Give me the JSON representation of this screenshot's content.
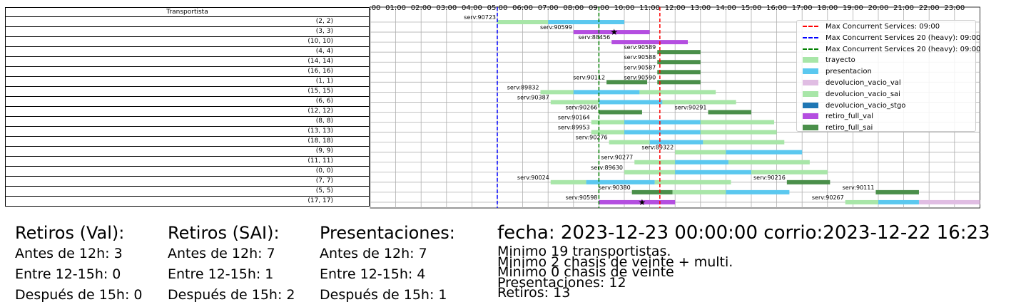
{
  "table": {
    "header": "Transportista",
    "rows": [
      "(2, 2)",
      "(3, 3)",
      "(10, 10)",
      "(4, 4)",
      "(14, 14)",
      "(16, 16)",
      "(1, 1)",
      "(15, 15)",
      "(6, 6)",
      "(12, 12)",
      "(8, 8)",
      "(13, 13)",
      "(18, 18)",
      "(9, 9)",
      "(11, 11)",
      "(0, 0)",
      "(7, 7)",
      "(5, 5)",
      "(17, 17)"
    ]
  },
  "chart_data": {
    "type": "gantt",
    "x_ticks": [
      "00:00",
      "01:00",
      "02:00",
      "03:00",
      "04:00",
      "05:00",
      "06:00",
      "07:00",
      "08:00",
      "09:00",
      "10:00",
      "11:00",
      "12:00",
      "13:00",
      "14:00",
      "15:00",
      "16:00",
      "17:00",
      "18:00",
      "19:00",
      "20:00",
      "21:00",
      "22:00",
      "23:00"
    ],
    "xlim": [
      0,
      24
    ],
    "grid": true,
    "legend_position": "top-right",
    "vlines": [
      {
        "label": "Max Concurrent Services: 09:00",
        "x": 11.4,
        "color": "#ff0000"
      },
      {
        "label": "Max Concurrent Services 20 (heavy): 09:00",
        "x": 5.0,
        "color": "#0000ff"
      },
      {
        "label": "Max Concurrent Services 20 (heavy): 09:00",
        "x": 9.0,
        "color": "#008000"
      }
    ],
    "categories": [
      {
        "label": "trayecto",
        "color": "#a8e6a8"
      },
      {
        "label": "presentacion",
        "color": "#5bc8ef"
      },
      {
        "label": "devolucion_vacio_val",
        "color": "#e0bde3"
      },
      {
        "label": "devolucion_vacio_sai",
        "color": "#a8e6a8"
      },
      {
        "label": "devolucion_vacio_stgo",
        "color": "#1f77b4"
      },
      {
        "label": "retiro_full_val",
        "color": "#b44ee0"
      },
      {
        "label": "retiro_full_sai",
        "color": "#4a8f4a"
      }
    ],
    "rows": [
      {
        "services": [
          {
            "label": "serv:90723",
            "label_x": 5.0,
            "segments": [
              [
                5.0,
                7.0,
                "trayecto"
              ],
              [
                7.0,
                10.0,
                "presentacion"
              ]
            ]
          }
        ]
      },
      {
        "services": [
          {
            "label": "serv:90599",
            "label_x": 8.0,
            "star": 9.6,
            "segments": [
              [
                8.0,
                11.0,
                "retiro_full_val"
              ]
            ]
          }
        ]
      },
      {
        "services": [
          {
            "label": "serv:88456",
            "label_x": 9.5,
            "segments": [
              [
                9.5,
                12.5,
                "retiro_full_val"
              ]
            ]
          }
        ]
      },
      {
        "services": [
          {
            "label": "serv:90589",
            "label_x": 11.3,
            "segments": [
              [
                11.3,
                13.0,
                "retiro_full_sai"
              ]
            ]
          }
        ]
      },
      {
        "services": [
          {
            "label": "serv:90588",
            "label_x": 11.3,
            "segments": [
              [
                11.3,
                13.0,
                "retiro_full_sai"
              ]
            ]
          }
        ]
      },
      {
        "services": [
          {
            "label": "serv:90587",
            "label_x": 11.3,
            "segments": [
              [
                11.3,
                13.0,
                "retiro_full_sai"
              ]
            ]
          }
        ]
      },
      {
        "services": [
          {
            "label": "serv:90112",
            "label_x": 9.3,
            "segments": [
              [
                9.3,
                10.9,
                "retiro_full_sai"
              ]
            ]
          },
          {
            "label": "serv:90590",
            "label_x": 11.3,
            "segments": [
              [
                11.3,
                13.0,
                "retiro_full_sai"
              ]
            ]
          }
        ]
      },
      {
        "services": [
          {
            "label": "serv:89832",
            "label_x": 6.7,
            "segments": [
              [
                6.7,
                8.0,
                "trayecto"
              ],
              [
                8.0,
                10.6,
                "presentacion"
              ],
              [
                10.6,
                13.6,
                "trayecto"
              ]
            ]
          }
        ]
      },
      {
        "services": [
          {
            "label": "serv:90387",
            "label_x": 7.1,
            "segments": [
              [
                7.1,
                9.0,
                "trayecto"
              ],
              [
                9.0,
                11.5,
                "presentacion"
              ],
              [
                11.5,
                14.4,
                "trayecto"
              ]
            ]
          }
        ]
      },
      {
        "services": [
          {
            "label": "serv:90266",
            "label_x": 9.0,
            "segments": [
              [
                9.0,
                10.7,
                "retiro_full_sai"
              ]
            ]
          },
          {
            "label": "serv:90291",
            "label_x": 13.3,
            "segments": [
              [
                13.3,
                15.0,
                "retiro_full_sai"
              ]
            ]
          }
        ]
      },
      {
        "services": [
          {
            "label": "serv:90164",
            "label_x": 8.7,
            "segments": [
              [
                8.7,
                10.0,
                "trayecto"
              ],
              [
                10.0,
                13.0,
                "presentacion"
              ],
              [
                13.0,
                15.9,
                "trayecto"
              ]
            ]
          }
        ]
      },
      {
        "services": [
          {
            "label": "serv:89953",
            "label_x": 8.7,
            "segments": [
              [
                8.7,
                10.0,
                "trayecto"
              ],
              [
                10.0,
                13.0,
                "presentacion"
              ],
              [
                13.0,
                16.0,
                "trayecto"
              ]
            ]
          }
        ]
      },
      {
        "services": [
          {
            "label": "serv:90276",
            "label_x": 9.4,
            "segments": [
              [
                9.4,
                11.0,
                "trayecto"
              ],
              [
                11.0,
                13.1,
                "presentacion"
              ],
              [
                13.1,
                16.3,
                "trayecto"
              ]
            ]
          }
        ]
      },
      {
        "services": [
          {
            "label": "serv:89322",
            "label_x": 12.0,
            "segments": [
              [
                12.0,
                14.0,
                "trayecto"
              ],
              [
                14.0,
                17.0,
                "presentacion"
              ]
            ]
          }
        ]
      },
      {
        "services": [
          {
            "label": "serv:90277",
            "label_x": 10.4,
            "segments": [
              [
                10.4,
                12.0,
                "trayecto"
              ],
              [
                12.0,
                14.1,
                "presentacion"
              ],
              [
                14.1,
                17.3,
                "trayecto"
              ]
            ]
          }
        ]
      },
      {
        "services": [
          {
            "label": "serv:89630",
            "label_x": 10.0,
            "segments": [
              [
                10.0,
                12.0,
                "trayecto"
              ],
              [
                12.0,
                15.0,
                "presentacion"
              ],
              [
                15.0,
                18.0,
                "trayecto"
              ]
            ]
          }
        ]
      },
      {
        "services": [
          {
            "label": "serv:90024",
            "label_x": 7.1,
            "segments": [
              [
                7.1,
                8.5,
                "trayecto"
              ],
              [
                8.5,
                11.2,
                "presentacion"
              ],
              [
                11.2,
                14.2,
                "trayecto"
              ]
            ]
          },
          {
            "label": "serv:90216",
            "label_x": 16.4,
            "segments": [
              [
                16.4,
                18.1,
                "retiro_full_sai"
              ]
            ]
          }
        ]
      },
      {
        "services": [
          {
            "label": "serv:90380",
            "label_x": 10.3,
            "segments": [
              [
                10.3,
                11.9,
                "retiro_full_sai"
              ],
              [
                11.9,
                14.0,
                "trayecto"
              ],
              [
                14.0,
                16.5,
                "presentacion"
              ]
            ]
          },
          {
            "label": "serv:90111",
            "label_x": 19.9,
            "segments": [
              [
                19.9,
                21.6,
                "retiro_full_sai"
              ]
            ]
          }
        ]
      },
      {
        "services": [
          {
            "label": "serv:90598",
            "label_x": 9.0,
            "star": 10.7,
            "segments": [
              [
                9.0,
                12.0,
                "retiro_full_val"
              ]
            ]
          },
          {
            "label": "serv:90267",
            "label_x": 18.7,
            "segments": [
              [
                18.7,
                20.0,
                "trayecto"
              ],
              [
                20.0,
                21.6,
                "presentacion"
              ],
              [
                21.6,
                24.0,
                "devolucion_vacio_val"
              ]
            ]
          }
        ]
      }
    ]
  },
  "stats": [
    {
      "title": "Retiros (Val):",
      "lines": [
        "Antes de 12h: 3",
        "Entre 12-15h: 0",
        "Después de 15h: 0"
      ]
    },
    {
      "title": "Retiros (SAI):",
      "lines": [
        "Antes de 12h: 7",
        "Entre 12-15h: 1",
        "Después de 15h: 2"
      ]
    },
    {
      "title": "Presentaciones:",
      "lines": [
        "Antes de 12h: 7",
        "Entre 12-15h: 4",
        "Después de 15h: 1"
      ]
    }
  ],
  "info": {
    "title": "fecha: 2023-12-23 00:00:00  corrio:2023-12-22 16:23",
    "lines": [
      "Minimo 19 transportistas.",
      "Minimo 2 chasis de veinte + multi.",
      "Minimo 0 chasis de veinte",
      "Presentaciones: 12",
      "Retiros: 13"
    ]
  }
}
